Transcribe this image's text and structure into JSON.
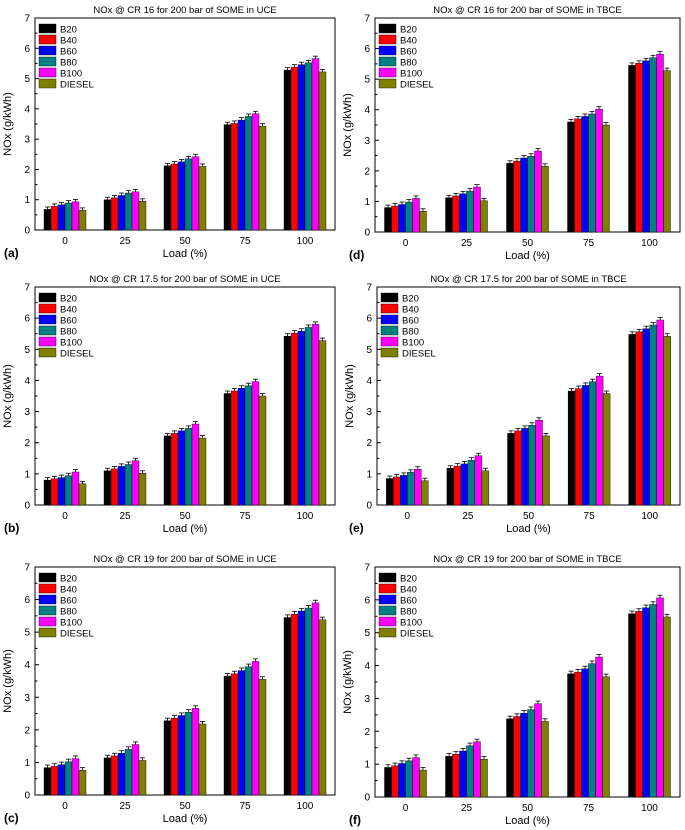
{
  "chart_data": [
    {
      "id": "a",
      "panel_label": "(a)",
      "type": "bar",
      "title": "NOx @ CR 16 for 200 bar of SOME in UCE",
      "xlabel": "Load (%)",
      "ylabel": "NOx (g/kWh)",
      "ylim": [
        0,
        7
      ],
      "yticks": [
        "0",
        "1",
        "2",
        "3",
        "4",
        "5",
        "6",
        "7"
      ],
      "categories": [
        "0",
        "25",
        "50",
        "75",
        "100"
      ],
      "series": [
        {
          "name": "B20",
          "color": "#000000",
          "values": [
            0.68,
            1.0,
            2.12,
            3.48,
            5.28
          ]
        },
        {
          "name": "B40",
          "color": "#ff0000",
          "values": [
            0.78,
            1.06,
            2.18,
            3.52,
            5.38
          ]
        },
        {
          "name": "B60",
          "color": "#0000ff",
          "values": [
            0.83,
            1.14,
            2.25,
            3.63,
            5.46
          ]
        },
        {
          "name": "B80",
          "color": "#008080",
          "values": [
            0.89,
            1.22,
            2.35,
            3.75,
            5.52
          ]
        },
        {
          "name": "B100",
          "color": "#ff00ff",
          "values": [
            0.93,
            1.26,
            2.42,
            3.84,
            5.66
          ]
        },
        {
          "name": "DIESEL",
          "color": "#808000",
          "values": [
            0.65,
            0.95,
            2.1,
            3.43,
            5.22
          ]
        }
      ]
    },
    {
      "id": "d",
      "panel_label": "(d)",
      "type": "bar",
      "title": "NOx @ CR 16 for 200 bar of SOME in TBCE",
      "xlabel": "Load (%)",
      "ylabel": "NOx (g/kWh)",
      "ylim": [
        0,
        7
      ],
      "yticks": [
        "0",
        "1",
        "2",
        "3",
        "4",
        "5",
        "6",
        "7"
      ],
      "categories": [
        "0",
        "25",
        "50",
        "75",
        "100"
      ],
      "series": [
        {
          "name": "B20",
          "color": "#000000",
          "values": [
            0.8,
            1.12,
            2.25,
            3.6,
            5.45
          ]
        },
        {
          "name": "B40",
          "color": "#ff0000",
          "values": [
            0.85,
            1.18,
            2.32,
            3.7,
            5.52
          ]
        },
        {
          "name": "B60",
          "color": "#0000ff",
          "values": [
            0.9,
            1.25,
            2.42,
            3.78,
            5.6
          ]
        },
        {
          "name": "B80",
          "color": "#008080",
          "values": [
            0.98,
            1.34,
            2.48,
            3.86,
            5.7
          ]
        },
        {
          "name": "B100",
          "color": "#ff00ff",
          "values": [
            1.1,
            1.47,
            2.65,
            4.02,
            5.82
          ]
        },
        {
          "name": "DIESEL",
          "color": "#808000",
          "values": [
            0.68,
            1.02,
            2.15,
            3.5,
            5.28
          ]
        }
      ]
    },
    {
      "id": "b",
      "panel_label": "(b)",
      "type": "bar",
      "title": "NOx @ CR 17.5 for 200 bar of SOME in UCE",
      "xlabel": "Load (%)",
      "ylabel": "NOx (g/kWh)",
      "ylim": [
        0,
        7
      ],
      "yticks": [
        "0",
        "1",
        "2",
        "3",
        "4",
        "5",
        "6",
        "7"
      ],
      "categories": [
        "0",
        "25",
        "50",
        "75",
        "100"
      ],
      "series": [
        {
          "name": "B20",
          "color": "#000000",
          "values": [
            0.8,
            1.1,
            2.22,
            3.58,
            5.42
          ]
        },
        {
          "name": "B40",
          "color": "#ff0000",
          "values": [
            0.84,
            1.16,
            2.3,
            3.66,
            5.52
          ]
        },
        {
          "name": "B60",
          "color": "#0000ff",
          "values": [
            0.88,
            1.24,
            2.38,
            3.75,
            5.58
          ]
        },
        {
          "name": "B80",
          "color": "#008080",
          "values": [
            0.94,
            1.3,
            2.46,
            3.83,
            5.7
          ]
        },
        {
          "name": "B100",
          "color": "#ff00ff",
          "values": [
            1.06,
            1.42,
            2.6,
            3.96,
            5.8
          ]
        },
        {
          "name": "DIESEL",
          "color": "#808000",
          "values": [
            0.68,
            1.02,
            2.15,
            3.5,
            5.28
          ]
        }
      ]
    },
    {
      "id": "e",
      "panel_label": "(e)",
      "type": "bar",
      "title": "NOx @ CR 17.5 for 200 bar of SOME in TBCE",
      "xlabel": "Load (%)",
      "ylabel": "NOx (g/kWh)",
      "ylim": [
        0,
        7
      ],
      "yticks": [
        "0",
        "1",
        "2",
        "3",
        "4",
        "5",
        "6",
        "7"
      ],
      "categories": [
        "0",
        "25",
        "50",
        "75",
        "100"
      ],
      "series": [
        {
          "name": "B20",
          "color": "#000000",
          "values": [
            0.85,
            1.18,
            2.3,
            3.66,
            5.48
          ]
        },
        {
          "name": "B40",
          "color": "#ff0000",
          "values": [
            0.9,
            1.25,
            2.38,
            3.74,
            5.56
          ]
        },
        {
          "name": "B60",
          "color": "#0000ff",
          "values": [
            0.95,
            1.32,
            2.46,
            3.84,
            5.66
          ]
        },
        {
          "name": "B80",
          "color": "#008080",
          "values": [
            1.05,
            1.44,
            2.56,
            3.96,
            5.78
          ]
        },
        {
          "name": "B100",
          "color": "#ff00ff",
          "values": [
            1.15,
            1.58,
            2.72,
            4.14,
            5.94
          ]
        },
        {
          "name": "DIESEL",
          "color": "#808000",
          "values": [
            0.78,
            1.1,
            2.22,
            3.58,
            5.42
          ]
        }
      ]
    },
    {
      "id": "c",
      "panel_label": "(c)",
      "type": "bar",
      "title": "NOx @ CR 19 for 200 bar of SOME in UCE",
      "xlabel": "Load (%)",
      "ylabel": "NOx (g/kWh)",
      "ylim": [
        0,
        7
      ],
      "yticks": [
        "0",
        "1",
        "2",
        "3",
        "4",
        "5",
        "6",
        "7"
      ],
      "categories": [
        "0",
        "25",
        "50",
        "75",
        "100"
      ],
      "series": [
        {
          "name": "B20",
          "color": "#000000",
          "values": [
            0.84,
            1.14,
            2.28,
            3.65,
            5.45
          ]
        },
        {
          "name": "B40",
          "color": "#ff0000",
          "values": [
            0.88,
            1.2,
            2.36,
            3.72,
            5.55
          ]
        },
        {
          "name": "B60",
          "color": "#0000ff",
          "values": [
            0.93,
            1.28,
            2.44,
            3.82,
            5.65
          ]
        },
        {
          "name": "B80",
          "color": "#008080",
          "values": [
            1.02,
            1.4,
            2.54,
            3.94,
            5.74
          ]
        },
        {
          "name": "B100",
          "color": "#ff00ff",
          "values": [
            1.12,
            1.55,
            2.66,
            4.1,
            5.9
          ]
        },
        {
          "name": "DIESEL",
          "color": "#808000",
          "values": [
            0.76,
            1.06,
            2.18,
            3.55,
            5.38
          ]
        }
      ]
    },
    {
      "id": "f",
      "panel_label": "(f)",
      "type": "bar",
      "title": "NOx @ CR 19 for 200 bar of SOME in TBCE",
      "xlabel": "Load (%)",
      "ylabel": "NOx (g/kWh)",
      "ylim": [
        0,
        7
      ],
      "yticks": [
        "0",
        "1",
        "2",
        "3",
        "4",
        "5",
        "6",
        "7"
      ],
      "categories": [
        "0",
        "25",
        "50",
        "75",
        "100"
      ],
      "series": [
        {
          "name": "B20",
          "color": "#000000",
          "values": [
            0.9,
            1.24,
            2.38,
            3.75,
            5.58
          ]
        },
        {
          "name": "B40",
          "color": "#ff0000",
          "values": [
            0.95,
            1.3,
            2.45,
            3.8,
            5.65
          ]
        },
        {
          "name": "B60",
          "color": "#0000ff",
          "values": [
            1.02,
            1.4,
            2.55,
            3.9,
            5.76
          ]
        },
        {
          "name": "B80",
          "color": "#008080",
          "values": [
            1.1,
            1.56,
            2.66,
            4.06,
            5.86
          ]
        },
        {
          "name": "B100",
          "color": "#ff00ff",
          "values": [
            1.2,
            1.68,
            2.84,
            4.26,
            6.06
          ]
        },
        {
          "name": "DIESEL",
          "color": "#808000",
          "values": [
            0.82,
            1.15,
            2.3,
            3.66,
            5.48
          ]
        }
      ]
    }
  ]
}
